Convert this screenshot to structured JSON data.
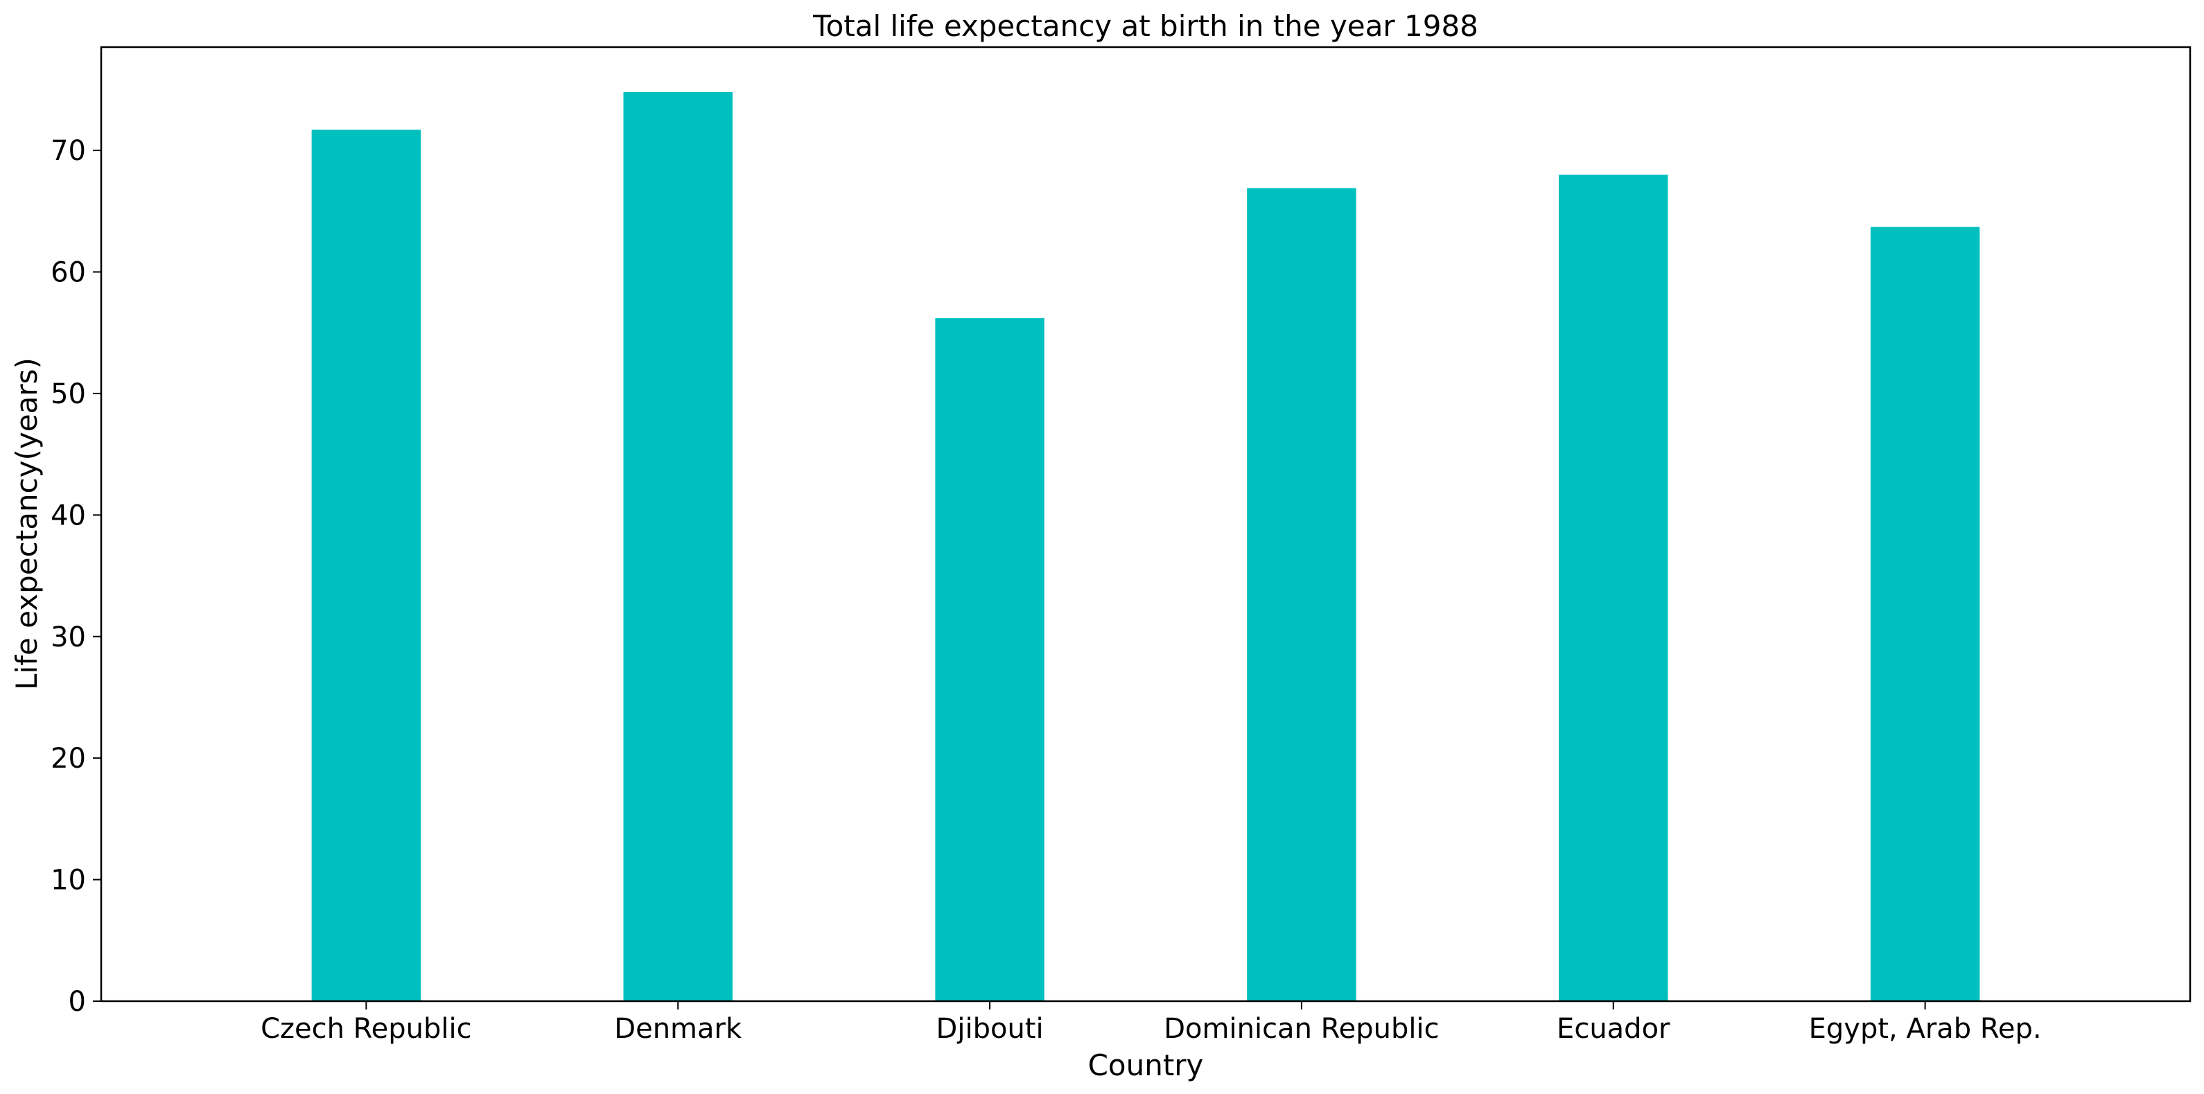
{
  "chart_data": {
    "type": "bar",
    "title": "Total life expectancy at birth in the year 1988",
    "xlabel": "Country",
    "ylabel": "Life expectancy(years)",
    "categories": [
      "Czech Republic",
      "Denmark",
      "Djibouti",
      "Dominican Republic",
      "Ecuador",
      "Egypt, Arab Rep."
    ],
    "values": [
      71.7,
      74.8,
      56.2,
      66.9,
      68.0,
      63.7
    ],
    "ylim": [
      0,
      78.5
    ],
    "yticks": [
      0,
      10,
      20,
      30,
      40,
      50,
      60,
      70
    ],
    "grid": false,
    "legend": "none",
    "bar_color": "#00BFBF"
  }
}
